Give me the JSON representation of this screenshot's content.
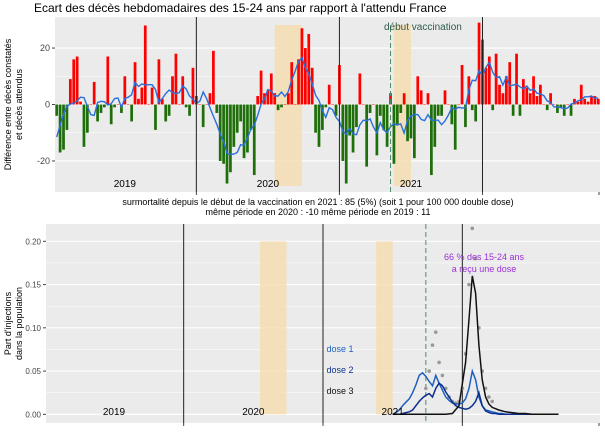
{
  "chart_data": [
    {
      "type": "bar",
      "title": "Ecart des décès hebdomadaires des 15-24 ans par rapport à l'attendu France",
      "ylabel_line1": "Différence entre décès constatés",
      "ylabel_line2": "et décès attendus",
      "ylim": [
        -31,
        31
      ],
      "yticks": [
        -20,
        0,
        20
      ],
      "year_labels": [
        "2019",
        "2020",
        "2021"
      ],
      "annotation_vaccination": "début vaccination",
      "colors": {
        "positive": "#ff0000",
        "negative": "#1e6e0a",
        "trend": "#2a6fdb",
        "shade": "#f5deb3",
        "year_line": "#222222",
        "vacc_line": "#4d8c6e"
      },
      "summary_line1": "surmortalité depuis le début de la vaccination en 2021 : 85  (5%)           (soit 1 pour 100 000 double dose)",
      "summary_line2": "même période en 2020 : -10         même période en 2019 : 11",
      "week_values": [
        -4,
        -17,
        -16,
        -9,
        9,
        16,
        17,
        1,
        -15,
        -10,
        0,
        8,
        -6,
        -3,
        -1,
        17,
        -7,
        -1,
        0,
        -3,
        10,
        0,
        -6,
        15,
        2,
        6,
        28,
        0,
        6,
        -9,
        16,
        2,
        -6,
        -4,
        10,
        18,
        0,
        10,
        -1,
        -4,
        13,
        3,
        0,
        -8,
        0,
        4,
        19,
        -3,
        -20,
        -21,
        -28,
        -24,
        -15,
        -10,
        -6,
        -19,
        -17,
        -9,
        -25,
        3,
        12,
        4,
        5,
        11,
        4,
        -2,
        -1,
        0,
        4,
        15,
        0,
        16,
        27,
        20,
        25,
        13,
        -10,
        -15,
        -9,
        -1,
        7,
        0,
        -4,
        14,
        -20,
        -28,
        -11,
        -17,
        -8,
        11,
        0,
        -22,
        -3,
        0,
        -18,
        -4,
        -9,
        -15,
        4,
        -21,
        -7,
        -3,
        4,
        -13,
        -12,
        -19,
        10,
        5,
        0,
        4,
        -25,
        -15,
        -4,
        -4,
        5,
        0,
        -7,
        -16,
        0,
        14,
        -8,
        10,
        -2,
        -6,
        29,
        23,
        13,
        17,
        -2,
        18,
        7,
        4,
        10,
        15,
        -4,
        18,
        -4,
        9,
        6,
        4,
        10,
        3,
        7,
        0,
        -2,
        4,
        0,
        -3,
        -1,
        -4,
        0,
        -4,
        2,
        1,
        7,
        2,
        1,
        3,
        3,
        2
      ]
    },
    {
      "type": "line",
      "ylabel_line1": "Part d'injections",
      "ylabel_line2": "dans la population",
      "ylim": [
        -0.01,
        0.22
      ],
      "yticks": [
        0.0,
        0.05,
        0.1,
        0.15,
        0.2
      ],
      "ytick_labels": [
        "0.00",
        "0.05",
        "0.10",
        "0.15",
        "0.20"
      ],
      "year_labels": [
        "2019",
        "2020",
        "2021"
      ],
      "annotation_line1": "66 % des 15-24 ans",
      "annotation_line2": "a reçu une dose",
      "series": [
        {
          "name": "dose 1",
          "color": "#1f5fbf",
          "x": [
            104,
            105,
            106,
            107,
            108,
            109,
            110,
            111,
            112,
            113,
            114,
            115,
            116,
            117,
            118,
            119,
            120,
            121,
            122,
            123,
            124,
            125,
            126,
            127,
            128,
            129,
            130,
            131,
            132,
            133,
            134,
            135,
            136,
            137,
            138,
            139,
            140,
            141,
            142,
            143,
            144,
            145,
            146,
            147,
            148,
            149,
            150,
            151,
            152,
            153,
            154
          ],
          "values": [
            0.0,
            0.002,
            0.005,
            0.01,
            0.014,
            0.018,
            0.025,
            0.034,
            0.045,
            0.048,
            0.044,
            0.038,
            0.033,
            0.045,
            0.036,
            0.028,
            0.02,
            0.016,
            0.013,
            0.012,
            0.012,
            0.013,
            0.018,
            0.03,
            0.05,
            0.04,
            0.02,
            0.01,
            0.005,
            0.004,
            0.003,
            0.002,
            0.001,
            0.001,
            0.0,
            0.0,
            0.0,
            0.0,
            0.0,
            0.0,
            0.0,
            0.0,
            0.0,
            0.0,
            0.0,
            0.0,
            0.0,
            0.0,
            0.0,
            0.0,
            0.0
          ]
        },
        {
          "name": "dose 2",
          "color": "#0a2f8c",
          "x": [
            104,
            105,
            106,
            107,
            108,
            109,
            110,
            111,
            112,
            113,
            114,
            115,
            116,
            117,
            118,
            119,
            120,
            121,
            122,
            123,
            124,
            125,
            126,
            127,
            128,
            129,
            130,
            131,
            132,
            133,
            134,
            135,
            136,
            137,
            138,
            139,
            140,
            141,
            142,
            143,
            144,
            145,
            146,
            147,
            148,
            149,
            150,
            151,
            152,
            153,
            154
          ],
          "values": [
            0.0,
            0.0,
            0.0,
            0.001,
            0.002,
            0.003,
            0.005,
            0.01,
            0.015,
            0.019,
            0.022,
            0.024,
            0.02,
            0.03,
            0.036,
            0.033,
            0.026,
            0.02,
            0.014,
            0.01,
            0.008,
            0.007,
            0.006,
            0.007,
            0.01,
            0.015,
            0.025,
            0.01,
            0.004,
            0.002,
            0.001,
            0.001,
            0.0,
            0.0,
            0.0,
            0.0,
            0.0,
            0.0,
            0.0,
            0.0,
            0.0,
            0.0,
            0.0,
            0.0,
            0.0,
            0.0,
            0.0,
            0.0,
            0.0,
            0.0,
            0.0
          ]
        },
        {
          "name": "dose 3",
          "color": "#111111",
          "x": [
            104,
            106,
            108,
            110,
            112,
            114,
            116,
            118,
            120,
            122,
            124,
            126,
            127,
            128,
            129,
            130,
            131,
            132,
            133,
            134,
            136,
            138,
            140,
            142,
            144,
            146,
            148,
            150,
            152,
            154
          ],
          "values": [
            0.0,
            0.0,
            0.0,
            0.0,
            0.0,
            0.0,
            0.0,
            0.0,
            0.0,
            0.001,
            0.01,
            0.06,
            0.11,
            0.16,
            0.14,
            0.08,
            0.04,
            0.02,
            0.012,
            0.008,
            0.005,
            0.003,
            0.002,
            0.001,
            0.001,
            0.0,
            0.0,
            0.0,
            0.0,
            0.0
          ]
        }
      ],
      "points_x": [
        114,
        115,
        116,
        117,
        118,
        119,
        120,
        121,
        122,
        123,
        124,
        125,
        126,
        127,
        128,
        129,
        130,
        131,
        132,
        133,
        134
      ],
      "points_y": [
        0.03,
        0.05,
        0.08,
        0.095,
        0.06,
        0.045,
        0.03,
        0.02,
        0.015,
        0.013,
        0.015,
        0.03,
        0.07,
        0.15,
        0.215,
        0.18,
        0.1,
        0.05,
        0.03,
        0.02,
        0.015
      ]
    }
  ]
}
